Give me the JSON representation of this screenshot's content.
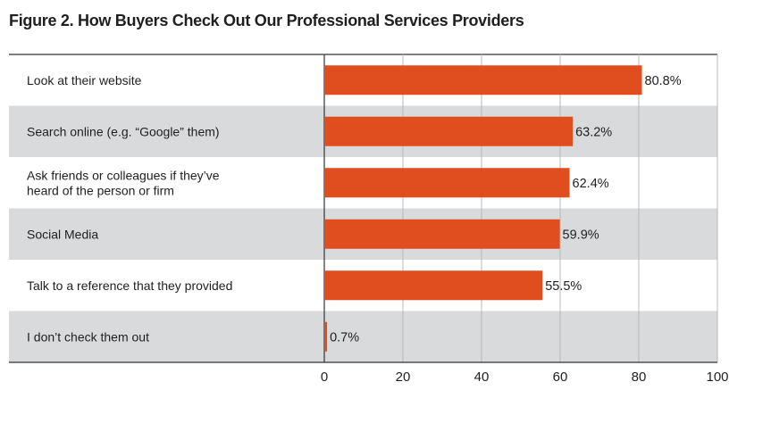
{
  "chart_data": {
    "type": "bar",
    "orientation": "horizontal",
    "title": "Figure 2. How Buyers Check Out Our Professional Services Providers",
    "categories": [
      [
        "Look at their website"
      ],
      [
        "Search online (e.g. “Google” them)"
      ],
      [
        "Ask friends or colleagues if they’ve",
        "heard of the person or firm"
      ],
      [
        "Social Media"
      ],
      [
        "Talk to a reference that they provided"
      ],
      [
        "I don’t check them out"
      ]
    ],
    "values": [
      80.8,
      63.2,
      62.4,
      59.9,
      55.5,
      0.7
    ],
    "value_labels": [
      "80.8%",
      "63.2%",
      "62.4%",
      "59.9%",
      "55.5%",
      "0.7%"
    ],
    "xlim": [
      0,
      100
    ],
    "xticks": [
      "0",
      "20",
      "40",
      "60",
      "80",
      "100"
    ],
    "grid": true,
    "colors": {
      "bar": "#e04e1f",
      "band": "#d9dadb",
      "grid": "#b8b8b8",
      "axis": "#333333"
    }
  }
}
